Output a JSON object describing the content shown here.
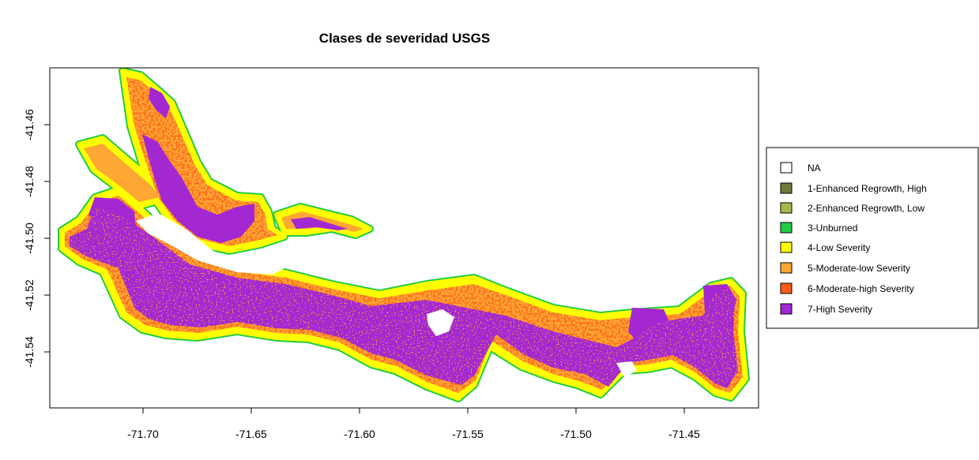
{
  "map": {
    "title": "Clases de severidad USGS",
    "x_ticks": [
      "-71.70",
      "-71.65",
      "-71.60",
      "-71.55",
      "-71.50",
      "-71.45"
    ],
    "y_ticks": [
      "-41.46",
      "-41.48",
      "-41.50",
      "-41.52",
      "-41.54"
    ],
    "x_range": [
      -71.7395,
      -71.4285
    ],
    "y_range": [
      -41.5585,
      -41.4435
    ]
  },
  "legend": {
    "items": [
      {
        "label": "NA",
        "color": "#ffffff"
      },
      {
        "label": "1-Enhanced Regrowth, High",
        "color": "#707a3a"
      },
      {
        "label": "2-Enhanced Regrowth, Low",
        "color": "#a9b84d"
      },
      {
        "label": "3-Unburned",
        "color": "#22cc44"
      },
      {
        "label": "4-Low Severity",
        "color": "#ffff00"
      },
      {
        "label": "5-Moderate-low Severity",
        "color": "#ffa733"
      },
      {
        "label": "6-Moderate-high Severity",
        "color": "#ff5a1a"
      },
      {
        "label": "7-High Severity",
        "color": "#a328d2"
      }
    ]
  },
  "colors": {
    "unburned": "#22cc44",
    "low": "#ffff00",
    "moderate_low": "#ffa733",
    "moderate_high": "#ff5a1a",
    "high": "#a328d2"
  }
}
